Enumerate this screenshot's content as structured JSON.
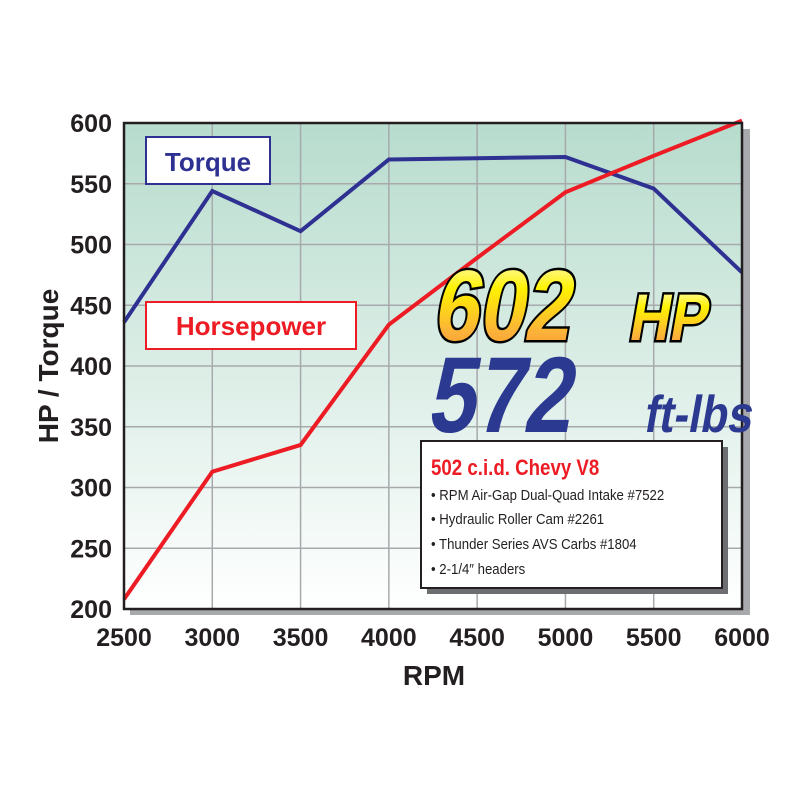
{
  "chart_data": {
    "type": "line",
    "xlabel": "RPM",
    "ylabel": "HP / Torque",
    "xlim": [
      2500,
      6000
    ],
    "ylim": [
      200,
      600
    ],
    "x_ticks": [
      "2500",
      "3000",
      "3500",
      "4000",
      "4500",
      "5000",
      "5500",
      "6000"
    ],
    "y_ticks": [
      "200",
      "250",
      "300",
      "350",
      "400",
      "450",
      "500",
      "550",
      "600"
    ],
    "grid": true,
    "x": [
      2500,
      3000,
      3500,
      4000,
      4500,
      5000,
      5500,
      6000
    ],
    "series": [
      {
        "name": "Torque",
        "color": "#2e3192",
        "values": [
          436,
          544,
          511,
          570,
          571,
          572,
          546,
          477
        ]
      },
      {
        "name": "Horsepower",
        "color": "#ed1c24",
        "values": [
          208,
          313,
          335,
          434,
          489,
          543,
          573,
          602
        ]
      }
    ],
    "legend_placement": "top-left",
    "colors": {
      "background_top": "#b7dccd",
      "background_bottom": "#ffffff",
      "grid": "#a7a9ac"
    }
  },
  "headline": {
    "hp_value": "602",
    "hp_unit": "HP",
    "torque_value": "572",
    "torque_unit": "ft-lbs"
  },
  "spec_box": {
    "title": "502 c.i.d. Chevy V8",
    "items": [
      "• RPM Air-Gap Dual-Quad Intake #7522",
      "• Hydraulic Roller Cam #2261",
      "• Thunder Series AVS Carbs #1804",
      "• 2-1/4″ headers"
    ]
  }
}
